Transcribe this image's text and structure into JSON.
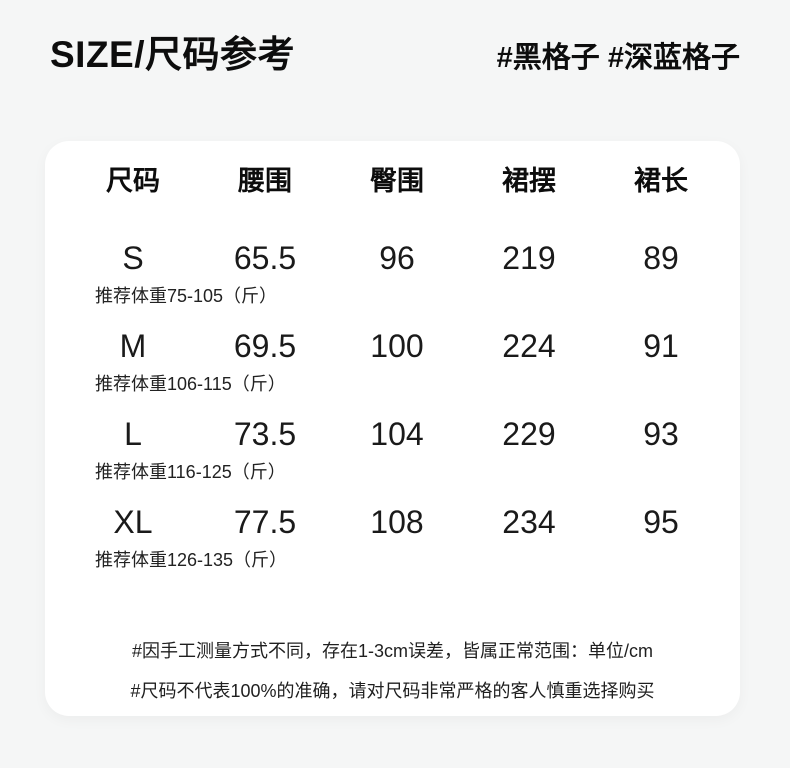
{
  "colors": {
    "page_background": "#f5f6f6",
    "card_background": "#ffffff",
    "text": "#111111"
  },
  "header": {
    "title": "SIZE/尺码参考",
    "tags": "#黑格子 #深蓝格子"
  },
  "table": {
    "headers": [
      "尺码",
      "腰围",
      "臀围",
      "裙摆",
      "裙长"
    ],
    "unit": "cm",
    "rows": [
      {
        "size": "S",
        "waist": "65.5",
        "hip": "96",
        "hem": "219",
        "length": "89",
        "weight_note": "推荐体重75-105（斤）"
      },
      {
        "size": "M",
        "waist": "69.5",
        "hip": "100",
        "hem": "224",
        "length": "91",
        "weight_note": "推荐体重106-115（斤）"
      },
      {
        "size": "L",
        "waist": "73.5",
        "hip": "104",
        "hem": "229",
        "length": "93",
        "weight_note": "推荐体重116-125（斤）"
      },
      {
        "size": "XL",
        "waist": "77.5",
        "hip": "108",
        "hem": "234",
        "length": "95",
        "weight_note": "推荐体重126-135（斤）"
      }
    ]
  },
  "footnotes": [
    "#因手工测量方式不同，存在1-3cm误差，皆属正常范围：单位/cm",
    "#尺码不代表100%的准确，请对尺码非常严格的客人慎重选择购买"
  ]
}
